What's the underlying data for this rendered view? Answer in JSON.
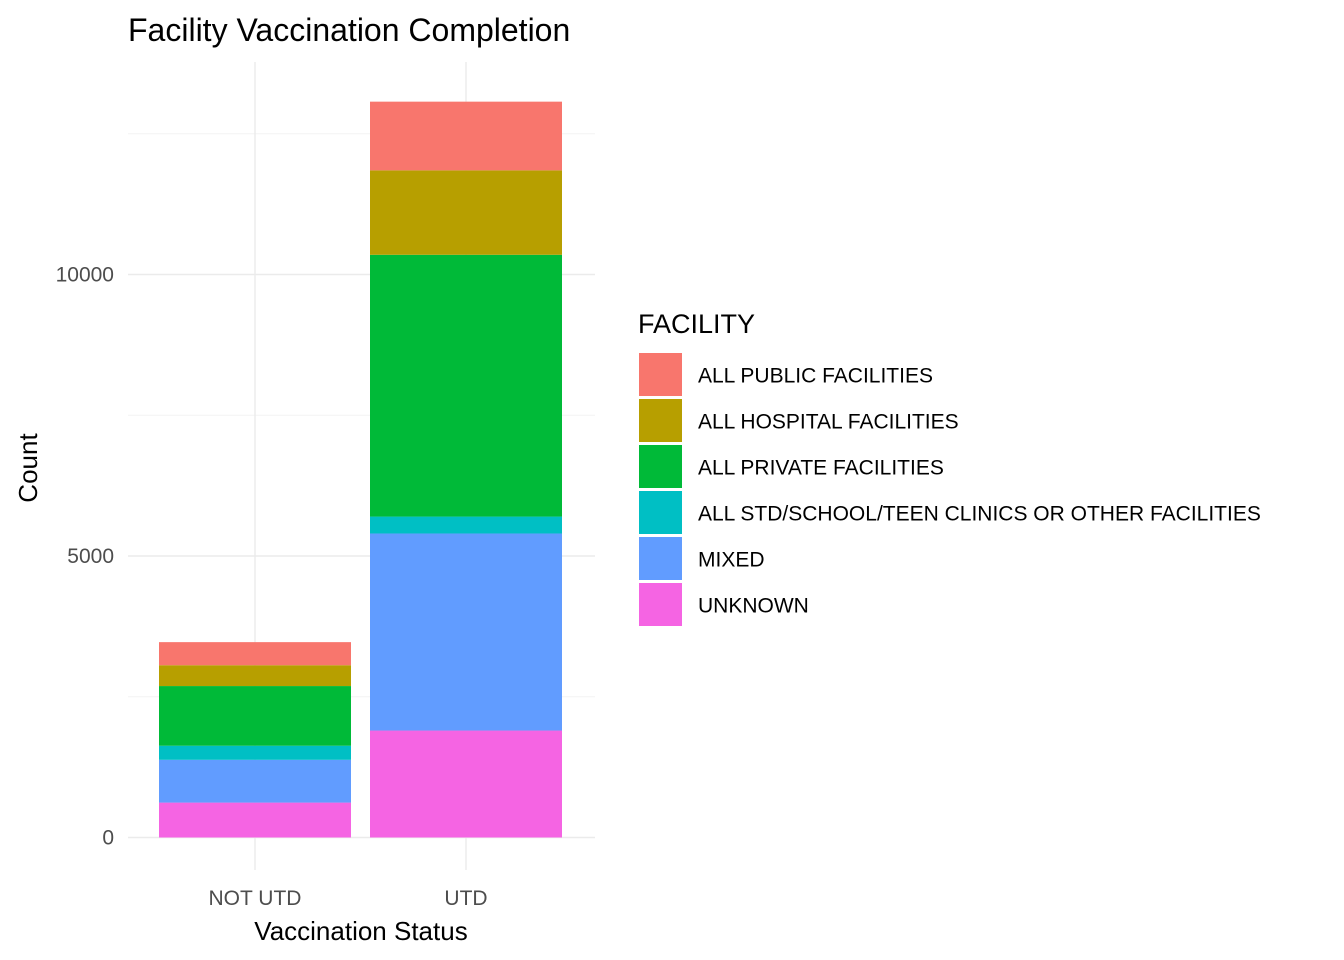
{
  "chart_data": {
    "type": "bar",
    "stacked": true,
    "title": "Facility Vaccination Completion",
    "xlabel": "Vaccination Status",
    "ylabel": "Count",
    "categories": [
      "NOT UTD",
      "UTD"
    ],
    "ylim": [
      0,
      14000
    ],
    "yticks": [
      0,
      5000,
      10000
    ],
    "grid": true,
    "legend": {
      "title": "FACILITY",
      "placement": "right"
    },
    "series": [
      {
        "name": "ALL PUBLIC FACILITIES",
        "color": "#F8766D",
        "values": [
          410,
          1220
        ]
      },
      {
        "name": "ALL HOSPITAL FACILITIES",
        "color": "#B79F00",
        "values": [
          370,
          1500
        ]
      },
      {
        "name": "ALL PRIVATE FACILITIES",
        "color": "#00BA38",
        "values": [
          1060,
          4650
        ]
      },
      {
        "name": "ALL STD/SCHOOL/TEEN CLINICS OR OTHER FACILITIES",
        "color": "#00BFC4",
        "values": [
          250,
          300
        ]
      },
      {
        "name": "MIXED",
        "color": "#619CFF",
        "values": [
          760,
          3500
        ]
      },
      {
        "name": "UNKNOWN",
        "color": "#F564E3",
        "values": [
          620,
          1900
        ]
      }
    ]
  }
}
